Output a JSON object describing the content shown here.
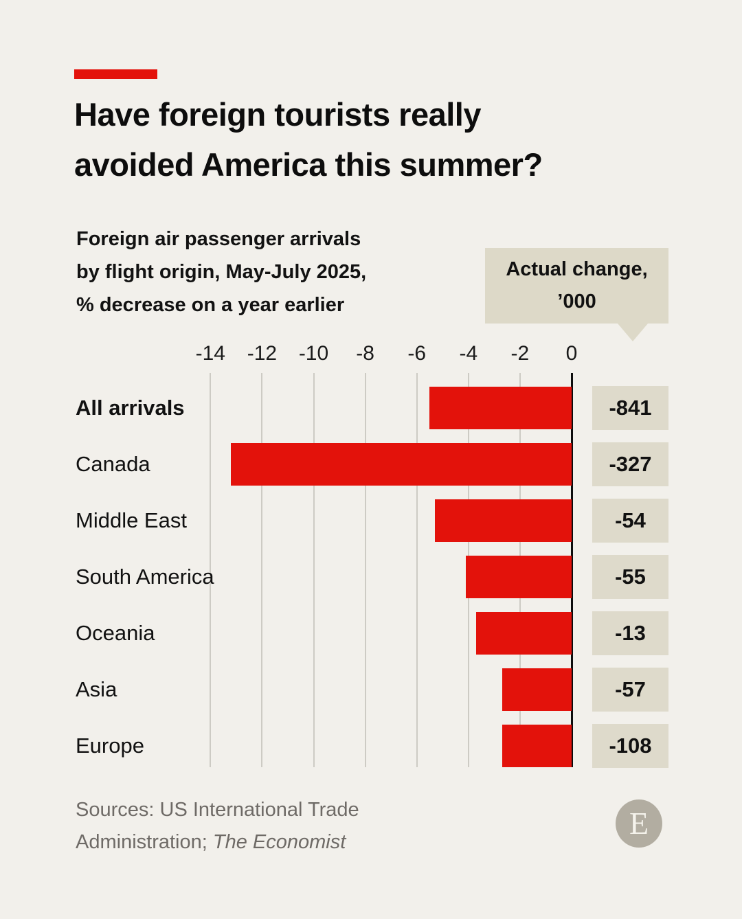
{
  "page": {
    "background_color": "#F2F0EB",
    "accent_color": "#E3120B",
    "badge_color": "#DEDACB"
  },
  "header": {
    "title_line1": "Have foreign tourists really",
    "title_line2": "avoided America this summer?"
  },
  "subtitle": {
    "line1": "Foreign air passenger arrivals",
    "line2": "by flight origin, May-July 2025,",
    "line3": "% decrease on a year earlier"
  },
  "callout": {
    "line1": "Actual change,",
    "line2": "’000"
  },
  "chart_data": {
    "type": "bar",
    "orientation": "horizontal",
    "title": "Have foreign tourists really avoided America this summer?",
    "subtitle": "Foreign air passenger arrivals by flight origin, May-July 2025, % decrease on a year earlier",
    "categories": [
      "All arrivals",
      "Canada",
      "Middle East",
      "South America",
      "Oceania",
      "Asia",
      "Europe"
    ],
    "values_pct_decrease": [
      -5.5,
      -13.2,
      -5.3,
      -4.1,
      -3.7,
      -2.7,
      -2.7
    ],
    "actual_change_thousands": [
      "-841",
      "-327",
      "-54",
      "-55",
      "-13",
      "-57",
      "-108"
    ],
    "value_label_header": "Actual change, ’000",
    "x_ticks": [
      -14,
      -12,
      -10,
      -8,
      -6,
      -4,
      -2,
      0
    ],
    "xlim": [
      -15,
      0
    ],
    "grid": true,
    "bar_color": "#E3120B",
    "emphasized_category_index": 0
  },
  "footer": {
    "sources_line1": "Sources: US International Trade",
    "sources_line2_normal": "Administration; ",
    "sources_line2_italic": "The Economist",
    "logo_letter": "E"
  }
}
